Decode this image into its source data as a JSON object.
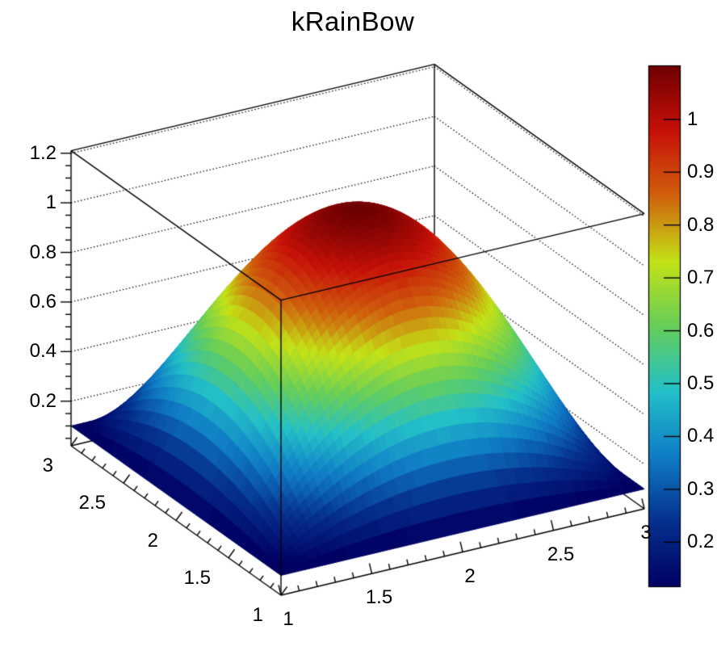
{
  "title": "kRainBow",
  "background_color": "#ffffff",
  "frame_color": "#000000",
  "chart_data": {
    "type": "surface3d",
    "title": "kRainBow",
    "function": "z(x,y) = 0.1 + (1 - (x-2)^2) * (1 - (y-2)^2)",
    "draw_style": "ROOT SURF2 color-mapped surface with dotted z gridlines on back faces and palette color bar",
    "x_range": [
      1,
      3
    ],
    "y_range": [
      1,
      3
    ],
    "z_surface_range": [
      0.1,
      1.1
    ],
    "z_frame_range": [
      0.02,
      1.21
    ],
    "x_axis": {
      "tick_values": [
        1,
        1.5,
        2,
        2.5,
        3
      ],
      "tick_labels": [
        "1",
        "1.5",
        "2",
        "2.5",
        "3"
      ],
      "minor_step": 0.1
    },
    "y_axis": {
      "tick_values": [
        1,
        1.5,
        2,
        2.5,
        3
      ],
      "tick_labels": [
        "1",
        "1.5",
        "2",
        "2.5",
        "3"
      ],
      "minor_step": 0.1
    },
    "z_axis": {
      "tick_values": [
        0.2,
        0.4,
        0.6,
        0.8,
        1.0,
        1.2
      ],
      "tick_labels": [
        "0.2",
        "0.4",
        "0.6",
        "0.8",
        "1",
        "1.2"
      ],
      "minor_step": 0.05
    },
    "grid": {
      "style": "dotted",
      "z_levels": [
        0.2,
        0.4,
        0.6,
        0.8,
        1.0,
        1.2
      ]
    },
    "palette": {
      "name": "kRainBow",
      "bar_range": [
        0.115,
        1.102
      ],
      "tick_values": [
        0.2,
        0.3,
        0.4,
        0.5,
        0.6,
        0.7,
        0.8,
        0.9,
        1.0
      ],
      "tick_labels": [
        "0.2",
        "0.3",
        "0.4",
        "0.5",
        "0.6",
        "0.7",
        "0.8",
        "0.9",
        "1"
      ],
      "stop_positions": [
        0,
        0.125,
        0.25,
        0.375,
        0.5,
        0.625,
        0.75,
        0.875,
        1
      ],
      "stop_colors_rgb": [
        [
          0,
          0,
          99
        ],
        [
          5,
          48,
          142
        ],
        [
          15,
          124,
          198
        ],
        [
          35,
          192,
          201
        ],
        [
          102,
          206,
          90
        ],
        [
          196,
          226,
          22
        ],
        [
          208,
          97,
          13
        ],
        [
          199,
          16,
          8
        ],
        [
          110,
          0,
          2
        ]
      ]
    }
  }
}
